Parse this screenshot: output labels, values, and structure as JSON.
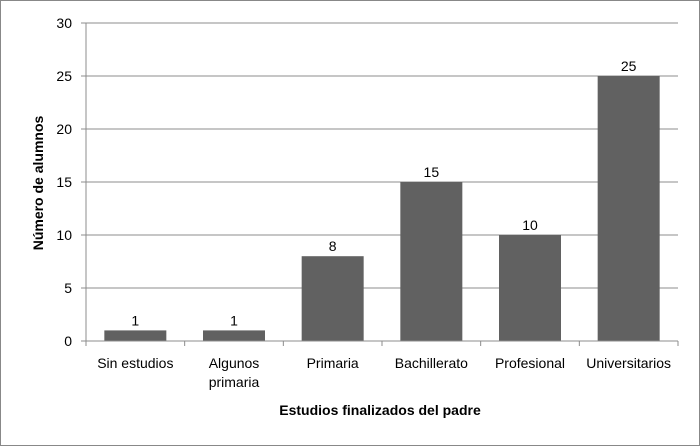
{
  "chart_data": {
    "type": "bar",
    "categories": [
      [
        "Sin estudios"
      ],
      [
        "Algunos",
        "primaria"
      ],
      [
        "Primaria"
      ],
      [
        "Bachillerato"
      ],
      [
        "Profesional"
      ],
      [
        "Universitarios"
      ]
    ],
    "values": [
      1,
      1,
      8,
      15,
      10,
      25
    ],
    "xlabel": "Estudios finalizados del padre",
    "ylabel": "Número de alumnos",
    "ylim": [
      0,
      30
    ],
    "yticks": [
      0,
      5,
      10,
      15,
      20,
      25,
      30
    ],
    "grid": "horizontal",
    "legend": "none",
    "colors": {
      "bar": "#616161",
      "grid": "#8c8c8c",
      "axis": "#8c8c8c"
    }
  }
}
